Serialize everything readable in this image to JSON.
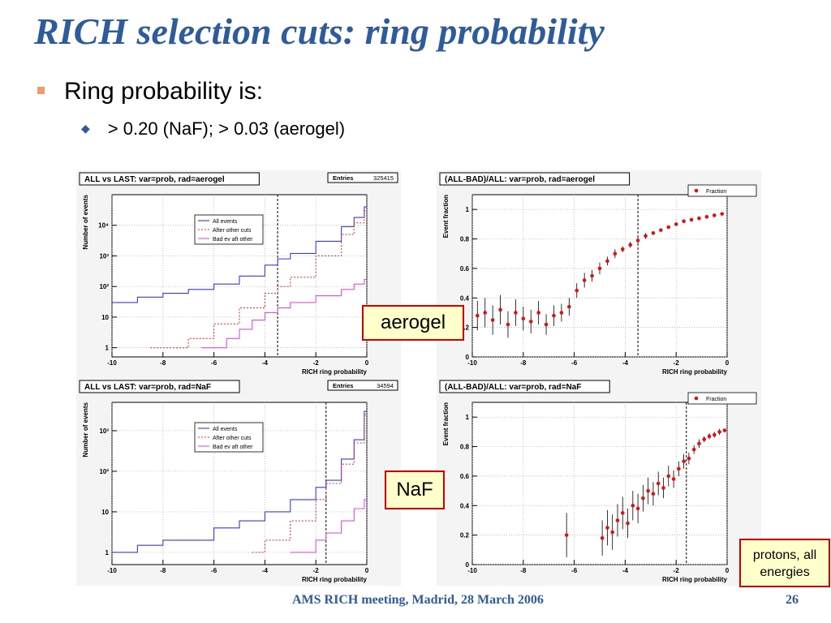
{
  "slide": {
    "title": "RICH selection cuts: ring probability",
    "bullet_1": "Ring probability is:",
    "bullet_2": "> 0.20 (NaF); > 0.03 (aerogel)",
    "label_aerogel": "aerogel",
    "label_naf": "NaF",
    "label_protons": "protons, all energies",
    "footer_text": "AMS RICH meeting, Madrid, 28 March 2006",
    "page_number": "26"
  },
  "colors": {
    "title": "#2e5b9a",
    "all_events": "#3a3ae0",
    "after_cuts": "#e03a3a",
    "bad_events": "#e050e0",
    "fraction": "#e01010",
    "tag_border": "#d40000",
    "tag_fill": "#ffffcc"
  },
  "chart_data": [
    {
      "type": "line",
      "title": "ALL vs LAST: var=prob, rad=aerogel",
      "stats_label": "Entries",
      "stats_value": "325415",
      "xlabel": "RICH ring probability",
      "ylabel": "Number of events",
      "xlim": [
        -10,
        0
      ],
      "log_y": true,
      "ylim": [
        0.5,
        100000
      ],
      "x_ticks": [
        "-10",
        "-8",
        "-6",
        "-4",
        "-2",
        "0"
      ],
      "y_ticks": [
        {
          "v": 1,
          "label": "1"
        },
        {
          "v": 10,
          "label": "10"
        },
        {
          "v": 100,
          "label": "10²"
        },
        {
          "v": 1000,
          "label": "10³"
        },
        {
          "v": 10000,
          "label": "10⁴"
        }
      ],
      "cut": -3.5,
      "grid": true,
      "legend": [
        "All events",
        "After other cuts",
        "Bad ev aft other"
      ],
      "series": [
        {
          "name": "All events",
          "style": "solid",
          "color": "#3a3ae0",
          "points": [
            [
              -10,
              30
            ],
            [
              -9,
              45
            ],
            [
              -8,
              60
            ],
            [
              -7,
              80
            ],
            [
              -6,
              120
            ],
            [
              -5,
              220
            ],
            [
              -4,
              500
            ],
            [
              -3.5,
              800
            ],
            [
              -3,
              1200
            ],
            [
              -2,
              3000
            ],
            [
              -1,
              9000
            ],
            [
              -0.5,
              18000
            ],
            [
              -0.1,
              40000
            ],
            [
              0,
              40000
            ]
          ]
        },
        {
          "name": "After other cuts",
          "style": "dashed",
          "color": "#e03a3a",
          "points": [
            [
              -8.5,
              1
            ],
            [
              -7,
              2
            ],
            [
              -6,
              6
            ],
            [
              -5,
              20
            ],
            [
              -4,
              60
            ],
            [
              -3.5,
              100
            ],
            [
              -3,
              200
            ],
            [
              -2,
              1000
            ],
            [
              -1,
              5000
            ],
            [
              -0.5,
              12000
            ],
            [
              -0.1,
              30000
            ],
            [
              0,
              30000
            ]
          ]
        },
        {
          "name": "Bad ev aft other",
          "style": "solid",
          "color": "#e050e0",
          "points": [
            [
              -6.5,
              1
            ],
            [
              -5.5,
              2
            ],
            [
              -5,
              4
            ],
            [
              -4.5,
              8
            ],
            [
              -4,
              14
            ],
            [
              -3.5,
              20
            ],
            [
              -3,
              30
            ],
            [
              -2,
              50
            ],
            [
              -1,
              80
            ],
            [
              -0.5,
              120
            ],
            [
              -0.1,
              170
            ],
            [
              0,
              170
            ]
          ]
        }
      ]
    },
    {
      "type": "scatter",
      "title": "(ALL-BAD)/ALL: var=prob, rad=aerogel",
      "xlabel": "RICH ring probability",
      "ylabel": "Event fraction",
      "xlim": [
        -10,
        0
      ],
      "ylim": [
        0,
        1.1
      ],
      "x_ticks": [
        "-10",
        "-8",
        "-6",
        "-4",
        "-2",
        "0"
      ],
      "y_ticks": [
        "0",
        "0.2",
        "0.4",
        "0.6",
        "0.8",
        "1"
      ],
      "cut": -3.5,
      "grid": true,
      "legend": [
        "Fraction"
      ],
      "series": [
        {
          "name": "Fraction",
          "color": "#e01010",
          "x": [
            -9.8,
            -9.5,
            -9.2,
            -8.9,
            -8.6,
            -8.3,
            -8.0,
            -7.7,
            -7.4,
            -7.1,
            -6.8,
            -6.5,
            -6.2,
            -5.9,
            -5.6,
            -5.3,
            -5.0,
            -4.7,
            -4.4,
            -4.1,
            -3.8,
            -3.5,
            -3.2,
            -2.9,
            -2.6,
            -2.3,
            -2.0,
            -1.7,
            -1.4,
            -1.1,
            -0.8,
            -0.5,
            -0.2
          ],
          "y": [
            0.28,
            0.3,
            0.25,
            0.32,
            0.22,
            0.3,
            0.26,
            0.24,
            0.3,
            0.22,
            0.28,
            0.3,
            0.34,
            0.45,
            0.52,
            0.55,
            0.6,
            0.65,
            0.7,
            0.73,
            0.76,
            0.79,
            0.82,
            0.84,
            0.86,
            0.88,
            0.9,
            0.92,
            0.93,
            0.94,
            0.95,
            0.96,
            0.97
          ],
          "err": [
            0.1,
            0.1,
            0.1,
            0.1,
            0.09,
            0.09,
            0.08,
            0.08,
            0.08,
            0.07,
            0.07,
            0.06,
            0.06,
            0.05,
            0.05,
            0.04,
            0.04,
            0.03,
            0.03,
            0.02,
            0.02,
            0.02,
            0.02,
            0.01,
            0.01,
            0.01,
            0.01,
            0.01,
            0.01,
            0.01,
            0.01,
            0.01,
            0.01
          ]
        }
      ]
    },
    {
      "type": "line",
      "title": "ALL vs LAST: var=prob, rad=NaF",
      "stats_label": "Entries",
      "stats_value": "34594",
      "xlabel": "RICH ring probability",
      "ylabel": "Number of events",
      "xlim": [
        -10,
        0
      ],
      "log_y": true,
      "ylim": [
        0.5,
        5000
      ],
      "x_ticks": [
        "-10",
        "-8",
        "-6",
        "-4",
        "-2",
        "0"
      ],
      "y_ticks": [
        {
          "v": 1,
          "label": "1"
        },
        {
          "v": 10,
          "label": "10"
        },
        {
          "v": 100,
          "label": "10²"
        },
        {
          "v": 1000,
          "label": "10³"
        }
      ],
      "cut": -1.6,
      "grid": true,
      "legend": [
        "All events",
        "After other cuts",
        "Bad ev aft other"
      ],
      "series": [
        {
          "name": "All events",
          "style": "solid",
          "color": "#3a3ae0",
          "points": [
            [
              -10,
              1
            ],
            [
              -9,
              1.5
            ],
            [
              -8,
              2
            ],
            [
              -7,
              2
            ],
            [
              -6,
              4
            ],
            [
              -5,
              6
            ],
            [
              -4,
              10
            ],
            [
              -3,
              20
            ],
            [
              -2,
              40
            ],
            [
              -1.6,
              60
            ],
            [
              -1,
              200
            ],
            [
              -0.5,
              600
            ],
            [
              -0.1,
              3000
            ],
            [
              0,
              3000
            ]
          ]
        },
        {
          "name": "After other cuts",
          "style": "dashed",
          "color": "#e03a3a",
          "points": [
            [
              -4.5,
              1
            ],
            [
              -4,
              2
            ],
            [
              -3,
              6
            ],
            [
              -2,
              20
            ],
            [
              -1.6,
              50
            ],
            [
              -1,
              150
            ],
            [
              -0.5,
              500
            ],
            [
              -0.1,
              2500
            ],
            [
              0,
              2500
            ]
          ]
        },
        {
          "name": "Bad ev aft other",
          "style": "solid",
          "color": "#e050e0",
          "points": [
            [
              -3,
              1
            ],
            [
              -2,
              2
            ],
            [
              -1.6,
              3
            ],
            [
              -1,
              6
            ],
            [
              -0.5,
              12
            ],
            [
              -0.1,
              20
            ],
            [
              0,
              20
            ]
          ]
        }
      ]
    },
    {
      "type": "scatter",
      "title": "(ALL-BAD)/ALL: var=prob, rad=NaF",
      "xlabel": "RICH ring probability",
      "ylabel": "Event fraction",
      "xlim": [
        -10,
        0
      ],
      "ylim": [
        0,
        1.1
      ],
      "x_ticks": [
        "-10",
        "-8",
        "-6",
        "-4",
        "-2",
        "0"
      ],
      "y_ticks": [
        "0",
        "0.2",
        "0.4",
        "0.6",
        "0.8",
        "1"
      ],
      "cut": -1.6,
      "grid": true,
      "legend": [
        "Fraction"
      ],
      "series": [
        {
          "name": "Fraction",
          "color": "#e01010",
          "x": [
            -6.3,
            -4.9,
            -4.7,
            -4.5,
            -4.3,
            -4.1,
            -3.9,
            -3.7,
            -3.5,
            -3.3,
            -3.1,
            -2.9,
            -2.7,
            -2.5,
            -2.3,
            -2.1,
            -1.9,
            -1.7,
            -1.5,
            -1.3,
            -1.1,
            -0.9,
            -0.7,
            -0.5,
            -0.3,
            -0.1
          ],
          "y": [
            0.2,
            0.18,
            0.25,
            0.22,
            0.3,
            0.35,
            0.28,
            0.4,
            0.38,
            0.45,
            0.5,
            0.48,
            0.55,
            0.52,
            0.6,
            0.58,
            0.65,
            0.7,
            0.72,
            0.78,
            0.82,
            0.85,
            0.87,
            0.88,
            0.9,
            0.91
          ],
          "err": [
            0.15,
            0.12,
            0.12,
            0.12,
            0.11,
            0.11,
            0.1,
            0.1,
            0.1,
            0.09,
            0.09,
            0.08,
            0.08,
            0.07,
            0.07,
            0.06,
            0.05,
            0.05,
            0.04,
            0.03,
            0.03,
            0.02,
            0.02,
            0.02,
            0.02,
            0.01
          ]
        }
      ]
    }
  ]
}
